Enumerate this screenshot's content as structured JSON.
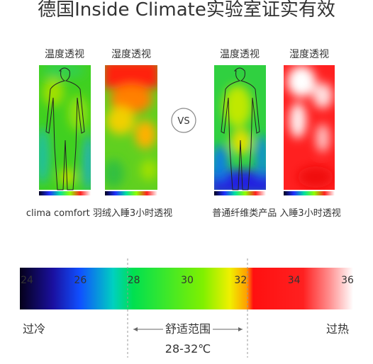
{
  "title": "德国Inside Climate实验室证实有效",
  "panels": [
    {
      "label": "温度透视"
    },
    {
      "label": "湿度透视"
    },
    {
      "label": "温度透视"
    },
    {
      "label": "湿度透视"
    }
  ],
  "vs": "VS",
  "captions": [
    "clima comfort 羽绒入睡3小时透视",
    "普通纤维类产品 入睡3小时透视"
  ],
  "scale": {
    "ticks": [
      24,
      26,
      28,
      30,
      32,
      34,
      36
    ],
    "cold_label": "过冷",
    "hot_label": "过热",
    "comfort_label": "舒适范围",
    "comfort_range": "28-32℃"
  }
}
